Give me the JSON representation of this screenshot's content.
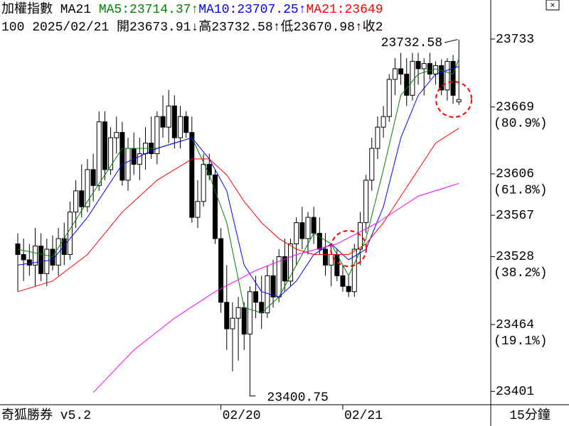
{
  "chart_data": {
    "type": "candlestick",
    "header": [
      "加權指數  MA21 ",
      "MA5:23714.37↑",
      "MA10:23707.25↑",
      "MA21:23649"
    ],
    "header_colors": [
      "#000000",
      "#008000",
      "#0000ff",
      "#ff0000"
    ],
    "subheader": "100 2025/02/21 開23673.91↓高23732.58↑低23670.98↑收2",
    "footer_left": "奇狐勝券 v5.2",
    "footer_right": "15分鐘",
    "ylim": [
      23388.5,
      23769.8
    ],
    "yticks": [
      23733,
      23669,
      23606,
      23567,
      23528,
      23464,
      23401
    ],
    "fib_levels": [
      {
        "value": 23669,
        "label": "(80.9%)"
      },
      {
        "value": 23606,
        "label": "(61.8%)"
      },
      {
        "value": 23528,
        "label": "(38.2%)"
      },
      {
        "value": 23464,
        "label": "(19.1%)"
      }
    ],
    "xticks": [
      {
        "value": 35,
        "label": "02/20"
      },
      {
        "value": 56,
        "label": "02/21"
      }
    ],
    "candle_fields": [
      "open",
      "high",
      "low",
      "close"
    ],
    "candles": [
      [
        23540,
        23550,
        23495,
        23530
      ],
      [
        23530,
        23545,
        23505,
        23525
      ],
      [
        23525,
        23540,
        23510,
        23520
      ],
      [
        23520,
        23555,
        23500,
        23538
      ],
      [
        23538,
        23550,
        23505,
        23512
      ],
      [
        23512,
        23545,
        23500,
        23535
      ],
      [
        23535,
        23548,
        23515,
        23520
      ],
      [
        23520,
        23555,
        23510,
        23545
      ],
      [
        23545,
        23560,
        23520,
        23530
      ],
      [
        23530,
        23580,
        23525,
        23570
      ],
      [
        23570,
        23600,
        23555,
        23590
      ],
      [
        23590,
        23615,
        23565,
        23575
      ],
      [
        23575,
        23620,
        23570,
        23610
      ],
      [
        23610,
        23625,
        23580,
        23595
      ],
      [
        23595,
        23665,
        23590,
        23655
      ],
      [
        23655,
        23665,
        23600,
        23610
      ],
      [
        23610,
        23650,
        23605,
        23640
      ],
      [
        23640,
        23660,
        23625,
        23645
      ],
      [
        23645,
        23655,
        23595,
        23600
      ],
      [
        23600,
        23640,
        23590,
        23630
      ],
      [
        23630,
        23645,
        23605,
        23615
      ],
      [
        23615,
        23640,
        23600,
        23625
      ],
      [
        23625,
        23650,
        23610,
        23635
      ],
      [
        23635,
        23660,
        23620,
        23625
      ],
      [
        23625,
        23665,
        23615,
        23660
      ],
      [
        23660,
        23680,
        23640,
        23650
      ],
      [
        23650,
        23685,
        23635,
        23670
      ],
      [
        23670,
        23680,
        23630,
        23640
      ],
      [
        23640,
        23670,
        23630,
        23660
      ],
      [
        23660,
        23665,
        23640,
        23645
      ],
      [
        23645,
        23660,
        23560,
        23565
      ],
      [
        23565,
        23600,
        23555,
        23580
      ],
      [
        23580,
        23625,
        23575,
        23615
      ],
      [
        23615,
        23625,
        23600,
        23605
      ],
      [
        23605,
        23610,
        23540,
        23545
      ],
      [
        23545,
        23555,
        23475,
        23485
      ],
      [
        23485,
        23520,
        23440,
        23460
      ],
      [
        23460,
        23485,
        23420,
        23470
      ],
      [
        23470,
        23490,
        23430,
        23480
      ],
      [
        23480,
        23485,
        23440,
        23455
      ],
      [
        23455,
        23500,
        23400.75,
        23495
      ],
      [
        23495,
        23510,
        23470,
        23485
      ],
      [
        23485,
        23510,
        23460,
        23475
      ],
      [
        23475,
        23520,
        23470,
        23510
      ],
      [
        23510,
        23525,
        23480,
        23490
      ],
      [
        23490,
        23535,
        23485,
        23528
      ],
      [
        23528,
        23545,
        23495,
        23505
      ],
      [
        23505,
        23545,
        23500,
        23540
      ],
      [
        23540,
        23565,
        23520,
        23560
      ],
      [
        23560,
        23575,
        23535,
        23545
      ],
      [
        23545,
        23570,
        23530,
        23565
      ],
      [
        23565,
        23575,
        23540,
        23550
      ],
      [
        23550,
        23565,
        23530,
        23535
      ],
      [
        23535,
        23550,
        23510,
        23520
      ],
      [
        23520,
        23540,
        23500,
        23530
      ],
      [
        23530,
        23535,
        23505,
        23510
      ],
      [
        23510,
        23520,
        23495,
        23500
      ],
      [
        23500,
        23510,
        23490,
        23495
      ],
      [
        23495,
        23540,
        23490,
        23535
      ],
      [
        23535,
        23570,
        23520,
        23560
      ],
      [
        23560,
        23605,
        23550,
        23600
      ],
      [
        23600,
        23640,
        23590,
        23630
      ],
      [
        23630,
        23660,
        23620,
        23650
      ],
      [
        23650,
        23670,
        23640,
        23660
      ],
      [
        23660,
        23700,
        23655,
        23695
      ],
      [
        23695,
        23715,
        23680,
        23705
      ],
      [
        23705,
        23720,
        23690,
        23700
      ],
      [
        23700,
        23715,
        23670,
        23680
      ],
      [
        23680,
        23720,
        23675,
        23712
      ],
      [
        23712,
        23720,
        23690,
        23705
      ],
      [
        23705,
        23715,
        23680,
        23710
      ],
      [
        23710,
        23720,
        23695,
        23700
      ],
      [
        23700,
        23712,
        23690,
        23708
      ],
      [
        23708,
        23714,
        23680,
        23685
      ],
      [
        23685,
        23715,
        23675,
        23712
      ],
      [
        23712,
        23718,
        23672,
        23680
      ],
      [
        23673.91,
        23732.58,
        23670.98,
        23676
      ]
    ],
    "series": [
      {
        "name": "MA5",
        "color": "#008000",
        "x": [
          0,
          6,
          12,
          18,
          24,
          30,
          33,
          36,
          39,
          42,
          45,
          48,
          51,
          54,
          57,
          60,
          63,
          66,
          69,
          72,
          75,
          76
        ],
        "values": [
          23535,
          23528,
          23580,
          23630,
          23630,
          23640,
          23605,
          23560,
          23480,
          23475,
          23490,
          23520,
          23550,
          23540,
          23510,
          23545,
          23610,
          23680,
          23700,
          23705,
          23700,
          23714.37
        ]
      },
      {
        "name": "MA10",
        "color": "#0000ff",
        "x": [
          0,
          6,
          12,
          18,
          24,
          30,
          33,
          36,
          39,
          42,
          45,
          48,
          51,
          54,
          57,
          60,
          63,
          66,
          69,
          72,
          76
        ],
        "values": [
          23520,
          23525,
          23565,
          23615,
          23630,
          23640,
          23620,
          23590,
          23520,
          23495,
          23490,
          23505,
          23530,
          23540,
          23525,
          23535,
          23575,
          23640,
          23680,
          23700,
          23707.25
        ]
      },
      {
        "name": "MA21",
        "color": "#ff0000",
        "x": [
          0,
          6,
          12,
          18,
          24,
          30,
          33,
          36,
          39,
          42,
          45,
          48,
          51,
          54,
          57,
          60,
          63,
          66,
          69,
          72,
          76
        ],
        "values": [
          23495,
          23505,
          23530,
          23570,
          23600,
          23620,
          23620,
          23605,
          23580,
          23560,
          23545,
          23535,
          23530,
          23530,
          23530,
          23540,
          23560,
          23585,
          23610,
          23635,
          23649
        ]
      },
      {
        "color": "#ff00ff",
        "x": [
          13,
          20,
          27,
          34,
          41,
          48,
          55,
          62,
          69,
          76
        ],
        "values": [
          23400,
          23440,
          23470,
          23495,
          23515,
          23530,
          23540,
          23560,
          23585,
          23597
        ]
      }
    ]
  }
}
